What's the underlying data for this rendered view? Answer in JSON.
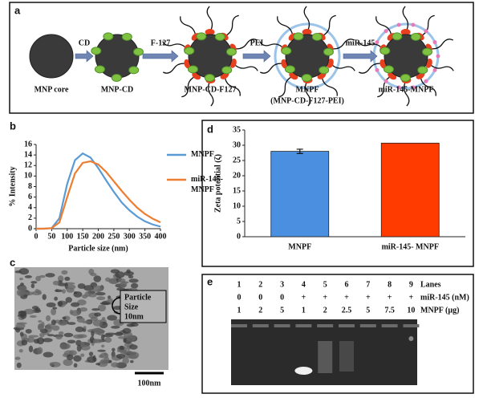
{
  "panel_labels": [
    "a",
    "b",
    "c",
    "d",
    "e"
  ],
  "panel_a": {
    "steps": [
      {
        "label": "CD",
        "color": "#2db34a"
      },
      {
        "label": "F-127",
        "color": "#e8501e"
      },
      {
        "label": "PEI",
        "color": "#4a7fc1"
      },
      {
        "label": "miR-145",
        "color": "#e87ab8"
      }
    ],
    "particles": [
      "MNP core",
      "MNP-CD",
      "MNP-CD-F127",
      "MNPF",
      "miR-145-MNPF"
    ],
    "note": "(MNP-CD-F127-PEI)"
  },
  "chart_data": [
    {
      "type": "line",
      "x_label": "Particle size (nm)",
      "y_label": "% Intensity",
      "x": [
        0,
        25,
        50,
        75,
        100,
        125,
        150,
        175,
        200,
        225,
        250,
        275,
        300,
        325,
        350,
        375,
        400
      ],
      "series": [
        {
          "name": "MNPF",
          "color": "#5b9bd5",
          "values": [
            0,
            0,
            0.1,
            2,
            8.5,
            13,
            14.3,
            13.5,
            11.5,
            9.2,
            7,
            5,
            3.5,
            2.3,
            1.4,
            0.8,
            0.4
          ]
        },
        {
          "name": "miR-145-\nMNPF",
          "color": "#ed7d31",
          "values": [
            0,
            0,
            0.1,
            1.2,
            6,
            10.5,
            12.5,
            12.8,
            12.2,
            10.8,
            9,
            7.2,
            5.5,
            4,
            2.8,
            1.9,
            1.2
          ]
        }
      ],
      "xlim": [
        0,
        400
      ],
      "xticks": [
        0,
        50,
        100,
        150,
        200,
        250,
        300,
        350,
        400
      ],
      "ylim": [
        0,
        16
      ],
      "yticks": [
        0,
        2,
        4,
        6,
        8,
        10,
        12,
        14,
        16
      ]
    },
    {
      "type": "bar",
      "y_label": "Zeta potential (ζ)",
      "categories": [
        "MNPF",
        "miR-145- MNPF"
      ],
      "values": [
        28,
        30.7
      ],
      "errors": [
        0.7,
        null
      ],
      "colors": [
        "#4a8fe0",
        "#ff3b00"
      ],
      "ylim": [
        0,
        35
      ],
      "yticks": [
        0,
        5,
        10,
        15,
        20,
        25,
        30,
        35
      ]
    }
  ],
  "panel_c": {
    "annotation": [
      "Particle",
      "Size",
      "10nm"
    ],
    "scale_bar": "100nm"
  },
  "panel_e": {
    "rows": [
      {
        "cells": [
          "1",
          "2",
          "3",
          "4",
          "5",
          "6",
          "7",
          "8",
          "9"
        ],
        "label": "Lanes"
      },
      {
        "cells": [
          "0",
          "0",
          "0",
          "+",
          "+",
          "+",
          "+",
          "+",
          "+"
        ],
        "label": "miR-145 (nM)"
      },
      {
        "cells": [
          "1",
          "2",
          "5",
          "1",
          "2",
          "2.5",
          "5",
          "7.5",
          "10"
        ],
        "label": "MNPF (µg)"
      }
    ]
  }
}
